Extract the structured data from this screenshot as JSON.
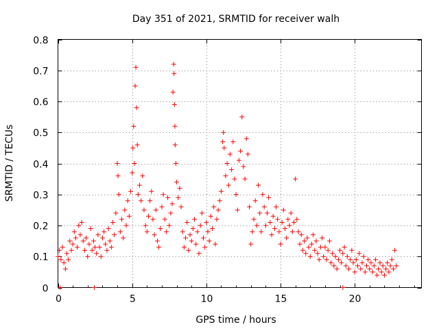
{
  "chart_data": {
    "type": "scatter",
    "title": "Day 351 of 2021, SRMTID for receiver walh",
    "xlabel": "GPS time / hours",
    "ylabel": "SRMTID / TECUs",
    "xlim": [
      0,
      24.5
    ],
    "ylim": [
      0,
      0.8
    ],
    "xticks": [
      0,
      5,
      10,
      15,
      20
    ],
    "xtick_labels": [
      "0",
      "5",
      "10",
      "15",
      "20"
    ],
    "yticks": [
      0,
      0.1,
      0.2,
      0.3,
      0.4,
      0.5,
      0.6,
      0.7,
      0.8
    ],
    "ytick_labels": [
      "0",
      "0.1",
      "0.2",
      "0.3",
      "0.4",
      "0.5",
      "0.6",
      "0.7",
      "0.8"
    ],
    "grid": true,
    "marker": "+",
    "marker_color": "#ff0000",
    "series": [
      {
        "name": "SRMTID",
        "points": [
          [
            0.0,
            0.1
          ],
          [
            0.1,
            0.12
          ],
          [
            0.2,
            0.09
          ],
          [
            0.3,
            0.13
          ],
          [
            0.4,
            0.08
          ],
          [
            0.5,
            0.06
          ],
          [
            0.6,
            0.11
          ],
          [
            0.7,
            0.09
          ],
          [
            0.8,
            0.15
          ],
          [
            0.9,
            0.12
          ],
          [
            1.0,
            0.14
          ],
          [
            1.1,
            0.18
          ],
          [
            1.2,
            0.16
          ],
          [
            1.3,
            0.13
          ],
          [
            1.4,
            0.2
          ],
          [
            1.5,
            0.17
          ],
          [
            1.6,
            0.21
          ],
          [
            1.7,
            0.15
          ],
          [
            1.8,
            0.12
          ],
          [
            1.9,
            0.16
          ],
          [
            2.0,
            0.1
          ],
          [
            2.1,
            0.14
          ],
          [
            2.2,
            0.19
          ],
          [
            2.3,
            0.12
          ],
          [
            2.4,
            0.15
          ],
          [
            2.5,
            0.13
          ],
          [
            2.6,
            0.11
          ],
          [
            2.7,
            0.17
          ],
          [
            2.8,
            0.13
          ],
          [
            2.9,
            0.1
          ],
          [
            3.0,
            0.16
          ],
          [
            3.1,
            0.18
          ],
          [
            3.2,
            0.14
          ],
          [
            3.3,
            0.12
          ],
          [
            3.4,
            0.19
          ],
          [
            3.5,
            0.15
          ],
          [
            3.6,
            0.13
          ],
          [
            3.7,
            0.21
          ],
          [
            3.8,
            0.17
          ],
          [
            3.9,
            0.24
          ],
          [
            4.0,
            0.4
          ],
          [
            4.05,
            0.36
          ],
          [
            4.1,
            0.3
          ],
          [
            4.2,
            0.18
          ],
          [
            4.3,
            0.22
          ],
          [
            4.4,
            0.16
          ],
          [
            4.5,
            0.25
          ],
          [
            4.6,
            0.2
          ],
          [
            4.7,
            0.28
          ],
          [
            4.8,
            0.23
          ],
          [
            4.9,
            0.31
          ],
          [
            5.0,
            0.37
          ],
          [
            5.05,
            0.45
          ],
          [
            5.1,
            0.52
          ],
          [
            5.15,
            0.4
          ],
          [
            5.2,
            0.65
          ],
          [
            5.25,
            0.71
          ],
          [
            5.3,
            0.58
          ],
          [
            5.35,
            0.46
          ],
          [
            5.4,
            0.3
          ],
          [
            5.5,
            0.33
          ],
          [
            5.6,
            0.28
          ],
          [
            5.7,
            0.36
          ],
          [
            5.8,
            0.25
          ],
          [
            5.9,
            0.2
          ],
          [
            6.0,
            0.18
          ],
          [
            6.1,
            0.23
          ],
          [
            6.2,
            0.28
          ],
          [
            6.3,
            0.31
          ],
          [
            6.4,
            0.22
          ],
          [
            6.5,
            0.17
          ],
          [
            6.6,
            0.25
          ],
          [
            6.7,
            0.15
          ],
          [
            6.8,
            0.13
          ],
          [
            6.9,
            0.19
          ],
          [
            7.0,
            0.26
          ],
          [
            7.1,
            0.3
          ],
          [
            7.2,
            0.22
          ],
          [
            7.3,
            0.18
          ],
          [
            7.4,
            0.29
          ],
          [
            7.5,
            0.2
          ],
          [
            7.6,
            0.24
          ],
          [
            7.7,
            0.27
          ],
          [
            7.75,
            0.63
          ],
          [
            7.8,
            0.72
          ],
          [
            7.82,
            0.69
          ],
          [
            7.85,
            0.59
          ],
          [
            7.88,
            0.52
          ],
          [
            7.9,
            0.46
          ],
          [
            7.95,
            0.4
          ],
          [
            8.0,
            0.34
          ],
          [
            8.1,
            0.29
          ],
          [
            8.2,
            0.32
          ],
          [
            8.3,
            0.26
          ],
          [
            8.4,
            0.18
          ],
          [
            8.5,
            0.13
          ],
          [
            8.6,
            0.16
          ],
          [
            8.7,
            0.21
          ],
          [
            8.8,
            0.12
          ],
          [
            8.9,
            0.17
          ],
          [
            9.0,
            0.15
          ],
          [
            9.1,
            0.19
          ],
          [
            9.2,
            0.22
          ],
          [
            9.3,
            0.14
          ],
          [
            9.4,
            0.18
          ],
          [
            9.5,
            0.11
          ],
          [
            9.6,
            0.2
          ],
          [
            9.7,
            0.24
          ],
          [
            9.8,
            0.16
          ],
          [
            9.9,
            0.13
          ],
          [
            10.0,
            0.21
          ],
          [
            10.1,
            0.18
          ],
          [
            10.2,
            0.15
          ],
          [
            10.3,
            0.23
          ],
          [
            10.4,
            0.19
          ],
          [
            10.5,
            0.26
          ],
          [
            10.6,
            0.14
          ],
          [
            10.7,
            0.22
          ],
          [
            10.8,
            0.25
          ],
          [
            10.9,
            0.28
          ],
          [
            11.0,
            0.31
          ],
          [
            11.1,
            0.47
          ],
          [
            11.15,
            0.5
          ],
          [
            11.2,
            0.45
          ],
          [
            11.3,
            0.36
          ],
          [
            11.4,
            0.4
          ],
          [
            11.5,
            0.33
          ],
          [
            11.6,
            0.43
          ],
          [
            11.7,
            0.38
          ],
          [
            11.8,
            0.47
          ],
          [
            11.9,
            0.35
          ],
          [
            12.0,
            0.3
          ],
          [
            12.1,
            0.25
          ],
          [
            12.2,
            0.41
          ],
          [
            12.3,
            0.44
          ],
          [
            12.4,
            0.55
          ],
          [
            12.5,
            0.39
          ],
          [
            12.6,
            0.35
          ],
          [
            12.7,
            0.48
          ],
          [
            12.8,
            0.43
          ],
          [
            12.9,
            0.26
          ],
          [
            13.0,
            0.14
          ],
          [
            13.1,
            0.18
          ],
          [
            13.2,
            0.22
          ],
          [
            13.3,
            0.28
          ],
          [
            13.4,
            0.2
          ],
          [
            13.5,
            0.33
          ],
          [
            13.6,
            0.24
          ],
          [
            13.7,
            0.18
          ],
          [
            13.8,
            0.3
          ],
          [
            13.9,
            0.26
          ],
          [
            14.0,
            0.2
          ],
          [
            14.1,
            0.24
          ],
          [
            14.2,
            0.29
          ],
          [
            14.3,
            0.21
          ],
          [
            14.4,
            0.17
          ],
          [
            14.5,
            0.23
          ],
          [
            14.6,
            0.19
          ],
          [
            14.7,
            0.26
          ],
          [
            14.8,
            0.22
          ],
          [
            14.9,
            0.18
          ],
          [
            15.0,
            0.14
          ],
          [
            15.1,
            0.21
          ],
          [
            15.2,
            0.25
          ],
          [
            15.3,
            0.19
          ],
          [
            15.4,
            0.16
          ],
          [
            15.5,
            0.22
          ],
          [
            15.6,
            0.2
          ],
          [
            15.7,
            0.24
          ],
          [
            15.8,
            0.18
          ],
          [
            15.9,
            0.21
          ],
          [
            16.0,
            0.35
          ],
          [
            16.1,
            0.22
          ],
          [
            16.2,
            0.18
          ],
          [
            16.3,
            0.14
          ],
          [
            16.4,
            0.17
          ],
          [
            16.5,
            0.12
          ],
          [
            16.6,
            0.15
          ],
          [
            16.7,
            0.11
          ],
          [
            16.8,
            0.16
          ],
          [
            16.9,
            0.13
          ],
          [
            17.0,
            0.1
          ],
          [
            17.1,
            0.14
          ],
          [
            17.2,
            0.17
          ],
          [
            17.3,
            0.12
          ],
          [
            17.4,
            0.15
          ],
          [
            17.5,
            0.11
          ],
          [
            17.6,
            0.09
          ],
          [
            17.7,
            0.13
          ],
          [
            17.8,
            0.16
          ],
          [
            17.9,
            0.1
          ],
          [
            18.0,
            0.13
          ],
          [
            18.1,
            0.09
          ],
          [
            18.2,
            0.12
          ],
          [
            18.3,
            0.15
          ],
          [
            18.4,
            0.08
          ],
          [
            18.5,
            0.11
          ],
          [
            18.6,
            0.07
          ],
          [
            18.7,
            0.1
          ],
          [
            18.8,
            0.06
          ],
          [
            18.9,
            0.09
          ],
          [
            19.0,
            0.12
          ],
          [
            19.1,
            0.08
          ],
          [
            19.2,
            0.11
          ],
          [
            19.3,
            0.13
          ],
          [
            19.4,
            0.07
          ],
          [
            19.5,
            0.1
          ],
          [
            19.6,
            0.06
          ],
          [
            19.7,
            0.09
          ],
          [
            19.8,
            0.12
          ],
          [
            19.9,
            0.08
          ],
          [
            20.0,
            0.05
          ],
          [
            20.1,
            0.09
          ],
          [
            20.2,
            0.07
          ],
          [
            20.3,
            0.11
          ],
          [
            20.4,
            0.06
          ],
          [
            20.5,
            0.08
          ],
          [
            20.6,
            0.1
          ],
          [
            20.7,
            0.05
          ],
          [
            20.8,
            0.07
          ],
          [
            20.9,
            0.09
          ],
          [
            21.0,
            0.06
          ],
          [
            21.1,
            0.08
          ],
          [
            21.2,
            0.05
          ],
          [
            21.3,
            0.07
          ],
          [
            21.4,
            0.09
          ],
          [
            21.5,
            0.04
          ],
          [
            21.6,
            0.06
          ],
          [
            21.7,
            0.08
          ],
          [
            21.8,
            0.05
          ],
          [
            21.9,
            0.07
          ],
          [
            22.0,
            0.04
          ],
          [
            22.1,
            0.06
          ],
          [
            22.2,
            0.08
          ],
          [
            22.3,
            0.05
          ],
          [
            22.4,
            0.07
          ],
          [
            22.5,
            0.09
          ],
          [
            22.6,
            0.06
          ],
          [
            22.7,
            0.12
          ],
          [
            22.8,
            0.07
          ],
          [
            0.15,
            0.0
          ],
          [
            2.45,
            0.0
          ],
          [
            19.2,
            0.0
          ]
        ]
      }
    ]
  }
}
